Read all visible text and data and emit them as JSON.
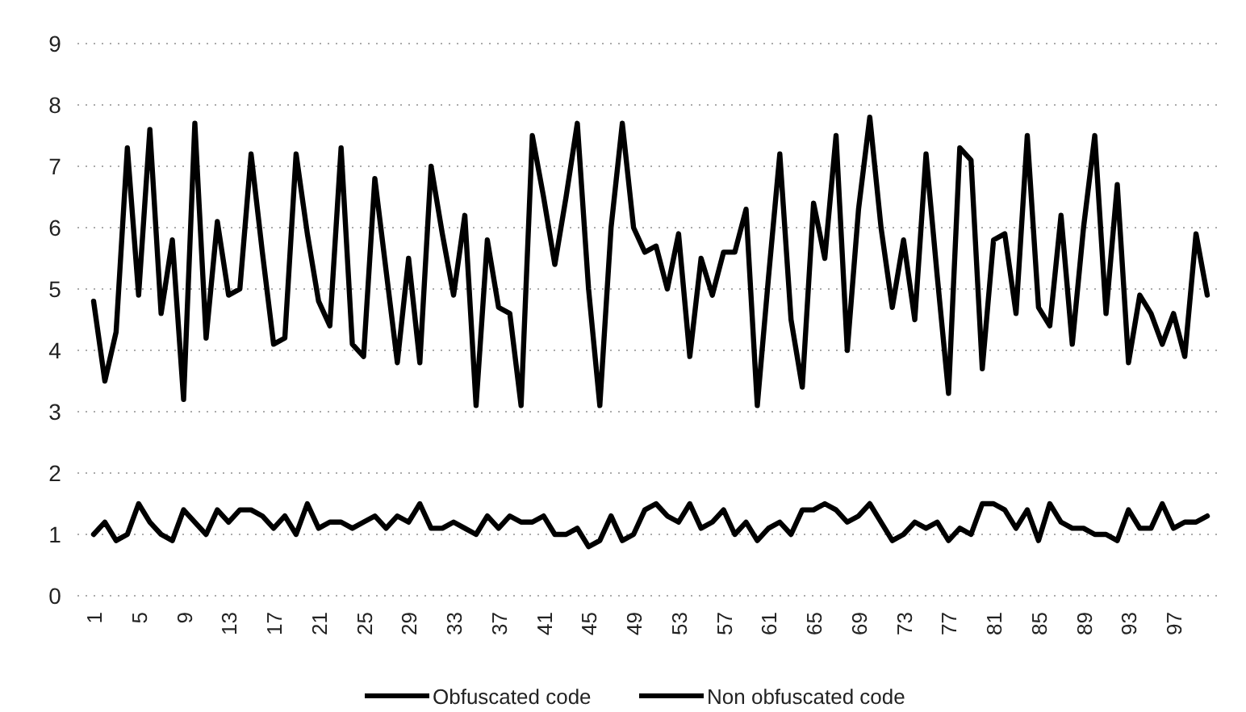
{
  "chart_data": {
    "type": "line",
    "categories": [
      "1",
      null,
      null,
      null,
      "5",
      null,
      null,
      null,
      "9",
      null,
      null,
      null,
      "13",
      null,
      null,
      null,
      "17",
      null,
      null,
      null,
      "21",
      null,
      null,
      null,
      "25",
      null,
      null,
      null,
      "29",
      null,
      null,
      null,
      "33",
      null,
      null,
      null,
      "37",
      null,
      null,
      null,
      "41",
      null,
      null,
      null,
      "45",
      null,
      null,
      null,
      "49",
      null,
      null,
      null,
      "53",
      null,
      null,
      null,
      "57",
      null,
      null,
      null,
      "61",
      null,
      null,
      null,
      "65",
      null,
      null,
      null,
      "69",
      null,
      null,
      null,
      "73",
      null,
      null,
      null,
      "77",
      null,
      null,
      null,
      "81",
      null,
      null,
      null,
      "85",
      null,
      null,
      null,
      "89",
      null,
      null,
      null,
      "93",
      null,
      null,
      null,
      "97",
      null,
      null,
      null
    ],
    "series": [
      {
        "name": "Obfuscated code",
        "color": "#000000",
        "values": [
          4.8,
          3.5,
          4.3,
          7.3,
          4.9,
          7.6,
          4.6,
          5.8,
          3.2,
          7.7,
          4.2,
          6.1,
          4.9,
          5.0,
          7.2,
          5.6,
          4.1,
          4.2,
          7.2,
          5.9,
          4.8,
          4.4,
          7.3,
          4.1,
          3.9,
          6.8,
          5.3,
          3.8,
          5.5,
          3.8,
          7.0,
          5.9,
          4.9,
          6.2,
          3.1,
          5.8,
          4.7,
          4.6,
          3.1,
          7.5,
          6.5,
          5.4,
          6.5,
          7.7,
          5.0,
          3.1,
          6.0,
          7.7,
          6.0,
          5.6,
          5.7,
          5.0,
          5.9,
          3.9,
          5.5,
          4.9,
          5.6,
          5.6,
          6.3,
          3.1,
          5.2,
          7.2,
          4.5,
          3.4,
          6.4,
          5.5,
          7.5,
          4.0,
          6.3,
          7.8,
          6.0,
          4.7,
          5.8,
          4.5,
          7.2,
          5.2,
          3.3,
          7.3,
          7.1,
          3.7,
          5.8,
          5.9,
          4.6,
          7.5,
          4.7,
          4.4,
          6.2,
          4.1,
          6.0,
          7.5,
          4.6,
          6.7,
          3.8,
          4.9,
          4.6,
          4.1,
          4.6,
          3.9,
          5.9,
          4.9
        ]
      },
      {
        "name": "Non obfuscated code",
        "color": "#000000",
        "values": [
          1.0,
          1.2,
          0.9,
          1.0,
          1.5,
          1.2,
          1.0,
          0.9,
          1.4,
          1.2,
          1.0,
          1.4,
          1.2,
          1.4,
          1.4,
          1.3,
          1.1,
          1.3,
          1.0,
          1.5,
          1.1,
          1.2,
          1.2,
          1.1,
          1.2,
          1.3,
          1.1,
          1.3,
          1.2,
          1.5,
          1.1,
          1.1,
          1.2,
          1.1,
          1.0,
          1.3,
          1.1,
          1.3,
          1.2,
          1.2,
          1.3,
          1.0,
          1.0,
          1.1,
          0.8,
          0.9,
          1.3,
          0.9,
          1.0,
          1.4,
          1.5,
          1.3,
          1.2,
          1.5,
          1.1,
          1.2,
          1.4,
          1.0,
          1.2,
          0.9,
          1.1,
          1.2,
          1.0,
          1.4,
          1.4,
          1.5,
          1.4,
          1.2,
          1.3,
          1.5,
          1.2,
          0.9,
          1.0,
          1.2,
          1.1,
          1.2,
          0.9,
          1.1,
          1.0,
          1.5,
          1.5,
          1.4,
          1.1,
          1.4,
          0.9,
          1.5,
          1.2,
          1.1,
          1.1,
          1.0,
          1.0,
          0.9,
          1.4,
          1.1,
          1.1,
          1.5,
          1.1,
          1.2,
          1.2,
          1.3
        ]
      }
    ],
    "ylim": [
      0,
      9
    ],
    "yticks": [
      0,
      1,
      2,
      3,
      4,
      5,
      6,
      7,
      8,
      9
    ],
    "grid": "y",
    "legend": "bottom",
    "line_style": "solid",
    "marker": "none"
  }
}
